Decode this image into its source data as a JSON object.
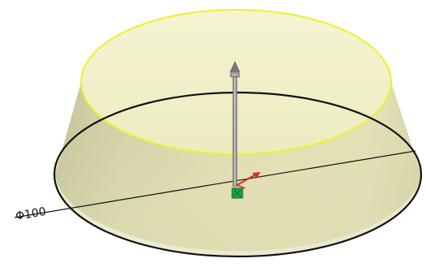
{
  "viewport": {
    "background": "#ffffff",
    "model": {
      "feature": "frustum",
      "top_edge_color": "#f2ef2a",
      "bottom_edge_color": "#111111",
      "body_color": "#e4e2b1",
      "top_face_color": "#f3f1c5"
    },
    "dimension": {
      "label": "Φ100"
    },
    "drag_handle": {
      "icon": "arrow-handle-icon",
      "color": "#8c8c8c"
    },
    "triad": {
      "x_axis_color": "#e02a1e",
      "origin_color": "#19a64a"
    }
  }
}
